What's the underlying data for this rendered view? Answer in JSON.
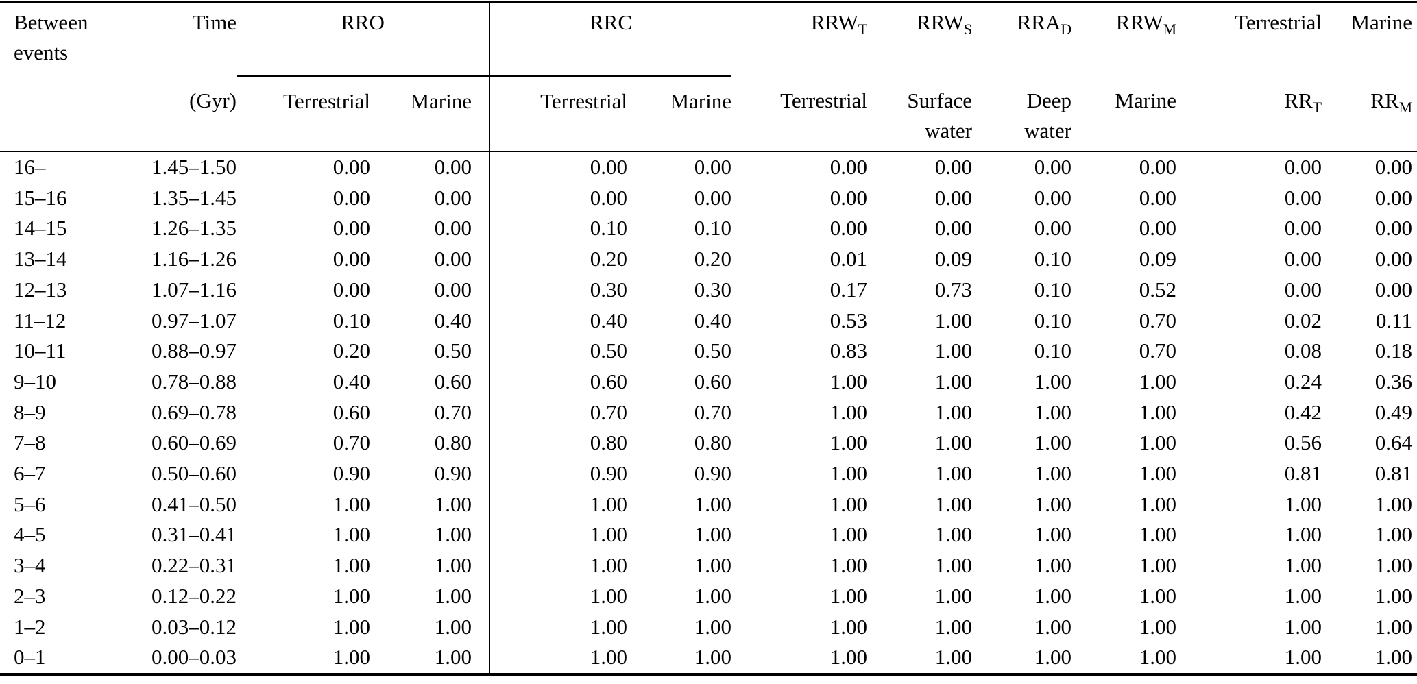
{
  "colors": {
    "background": "#ffffff",
    "text": "#000000",
    "rule": "#000000"
  },
  "table": {
    "header": {
      "between_line1": "Between",
      "between_line2": "events",
      "time_label": "Time",
      "time_unit": "(Gyr)",
      "group_rro": {
        "label": "RRO",
        "sub1": "Terrestrial",
        "sub2": "Marine"
      },
      "group_rrc": {
        "label": "RRC",
        "sub1": "Terrestrial",
        "sub2": "Marine"
      },
      "col_rrw_t": {
        "base": "RRW",
        "sub": "T",
        "label": "Terrestrial"
      },
      "col_rrw_s": {
        "base": "RRW",
        "sub": "S",
        "label_line1": "Surface",
        "label_line2": "water"
      },
      "col_rra_d": {
        "base": "RRA",
        "sub": "D",
        "label_line1": "Deep",
        "label_line2": "water"
      },
      "col_rrw_m": {
        "base": "RRW",
        "sub": "M",
        "label": "Marine"
      },
      "col_rr_t": {
        "top": "Terrestrial",
        "base": "RR",
        "sub": "T"
      },
      "col_rr_m": {
        "top": "Marine",
        "base": "RR",
        "sub": "M"
      }
    },
    "column_keys": [
      "between-events",
      "time-gyr",
      "rro-terrestrial",
      "rro-marine",
      "rrc-terrestrial",
      "rrc-marine",
      "rrw-t-terrestrial",
      "rrw-s-surface-water",
      "rra-d-deep-water",
      "rrw-m-marine",
      "rr-t",
      "rr-m"
    ],
    "rows": [
      [
        "16–",
        "1.45–1.50",
        "0.00",
        "0.00",
        "0.00",
        "0.00",
        "0.00",
        "0.00",
        "0.00",
        "0.00",
        "0.00",
        "0.00"
      ],
      [
        "15–16",
        "1.35–1.45",
        "0.00",
        "0.00",
        "0.00",
        "0.00",
        "0.00",
        "0.00",
        "0.00",
        "0.00",
        "0.00",
        "0.00"
      ],
      [
        "14–15",
        "1.26–1.35",
        "0.00",
        "0.00",
        "0.10",
        "0.10",
        "0.00",
        "0.00",
        "0.00",
        "0.00",
        "0.00",
        "0.00"
      ],
      [
        "13–14",
        "1.16–1.26",
        "0.00",
        "0.00",
        "0.20",
        "0.20",
        "0.01",
        "0.09",
        "0.10",
        "0.09",
        "0.00",
        "0.00"
      ],
      [
        "12–13",
        "1.07–1.16",
        "0.00",
        "0.00",
        "0.30",
        "0.30",
        "0.17",
        "0.73",
        "0.10",
        "0.52",
        "0.00",
        "0.00"
      ],
      [
        "11–12",
        "0.97–1.07",
        "0.10",
        "0.40",
        "0.40",
        "0.40",
        "0.53",
        "1.00",
        "0.10",
        "0.70",
        "0.02",
        "0.11"
      ],
      [
        "10–11",
        "0.88–0.97",
        "0.20",
        "0.50",
        "0.50",
        "0.50",
        "0.83",
        "1.00",
        "0.10",
        "0.70",
        "0.08",
        "0.18"
      ],
      [
        "9–10",
        "0.78–0.88",
        "0.40",
        "0.60",
        "0.60",
        "0.60",
        "1.00",
        "1.00",
        "1.00",
        "1.00",
        "0.24",
        "0.36"
      ],
      [
        "8–9",
        "0.69–0.78",
        "0.60",
        "0.70",
        "0.70",
        "0.70",
        "1.00",
        "1.00",
        "1.00",
        "1.00",
        "0.42",
        "0.49"
      ],
      [
        "7–8",
        "0.60–0.69",
        "0.70",
        "0.80",
        "0.80",
        "0.80",
        "1.00",
        "1.00",
        "1.00",
        "1.00",
        "0.56",
        "0.64"
      ],
      [
        "6–7",
        "0.50–0.60",
        "0.90",
        "0.90",
        "0.90",
        "0.90",
        "1.00",
        "1.00",
        "1.00",
        "1.00",
        "0.81",
        "0.81"
      ],
      [
        "5–6",
        "0.41–0.50",
        "1.00",
        "1.00",
        "1.00",
        "1.00",
        "1.00",
        "1.00",
        "1.00",
        "1.00",
        "1.00",
        "1.00"
      ],
      [
        "4–5",
        "0.31–0.41",
        "1.00",
        "1.00",
        "1.00",
        "1.00",
        "1.00",
        "1.00",
        "1.00",
        "1.00",
        "1.00",
        "1.00"
      ],
      [
        "3–4",
        "0.22–0.31",
        "1.00",
        "1.00",
        "1.00",
        "1.00",
        "1.00",
        "1.00",
        "1.00",
        "1.00",
        "1.00",
        "1.00"
      ],
      [
        "2–3",
        "0.12–0.22",
        "1.00",
        "1.00",
        "1.00",
        "1.00",
        "1.00",
        "1.00",
        "1.00",
        "1.00",
        "1.00",
        "1.00"
      ],
      [
        "1–2",
        "0.03–0.12",
        "1.00",
        "1.00",
        "1.00",
        "1.00",
        "1.00",
        "1.00",
        "1.00",
        "1.00",
        "1.00",
        "1.00"
      ],
      [
        "0–1",
        "0.00–0.03",
        "1.00",
        "1.00",
        "1.00",
        "1.00",
        "1.00",
        "1.00",
        "1.00",
        "1.00",
        "1.00",
        "1.00"
      ]
    ]
  }
}
